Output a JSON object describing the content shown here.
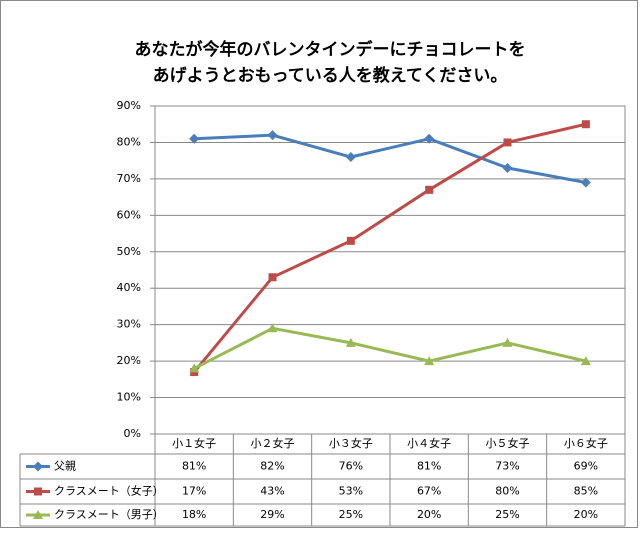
{
  "chart_data": {
    "type": "line",
    "title": [
      "あなたが今年のバレンタインデーにチョコレートを",
      "あげようとおもっている人を教えてください。"
    ],
    "categories": [
      "小１女子",
      "小２女子",
      "小３女子",
      "小４女子",
      "小５女子",
      "小６女子"
    ],
    "series": [
      {
        "name": "父親",
        "color": "#4a7ebb",
        "marker": "diamond",
        "values": [
          81,
          82,
          76,
          81,
          73,
          69
        ],
        "value_labels": [
          "81%",
          "82%",
          "76%",
          "81%",
          "73%",
          "69%"
        ]
      },
      {
        "name": "クラスメート（女子）",
        "color": "#be4b48",
        "marker": "square",
        "values": [
          17,
          43,
          53,
          67,
          80,
          85
        ],
        "value_labels": [
          "17%",
          "43%",
          "53%",
          "67%",
          "80%",
          "85%"
        ]
      },
      {
        "name": "クラスメート（男子）",
        "color": "#98b954",
        "marker": "triangle",
        "values": [
          18,
          29,
          25,
          20,
          25,
          20
        ],
        "value_labels": [
          "18%",
          "29%",
          "25%",
          "20%",
          "25%",
          "20%"
        ]
      }
    ],
    "ylim": [
      0,
      90
    ],
    "yticks": [
      {
        "value": 0,
        "label": "0%"
      },
      {
        "value": 10,
        "label": "10%"
      },
      {
        "value": 20,
        "label": "20%"
      },
      {
        "value": 30,
        "label": "30%"
      },
      {
        "value": 40,
        "label": "40%"
      },
      {
        "value": 50,
        "label": "50%"
      },
      {
        "value": 60,
        "label": "60%"
      },
      {
        "value": 70,
        "label": "70%"
      },
      {
        "value": 80,
        "label": "80%"
      },
      {
        "value": 90,
        "label": "90%"
      }
    ],
    "grid": true
  }
}
